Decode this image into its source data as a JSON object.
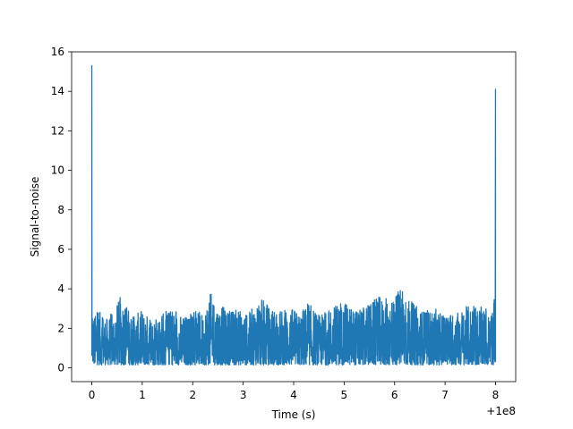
{
  "chart_data": {
    "type": "line",
    "title": "",
    "xlabel": "Time (s)",
    "ylabel": "Signal-to-noise",
    "x_offset_label": "+1e8",
    "xlim": [
      -0.4,
      8.4
    ],
    "ylim": [
      -0.7,
      16
    ],
    "x_ticks": [
      0,
      1,
      2,
      3,
      4,
      5,
      6,
      7,
      8
    ],
    "x_tick_labels": [
      "0",
      "1",
      "2",
      "3",
      "4",
      "5",
      "6",
      "7",
      "8"
    ],
    "y_ticks": [
      0,
      2,
      4,
      6,
      8,
      10,
      12,
      14,
      16
    ],
    "y_tick_labels": [
      "0",
      "2",
      "4",
      "6",
      "8",
      "10",
      "12",
      "14",
      "16"
    ],
    "grid": false,
    "series": [
      {
        "color": "#1f77b4",
        "x": [
          0.0,
          0.005,
          0.02,
          0.04,
          0.07,
          0.1,
          0.15,
          0.2,
          0.3,
          0.45,
          0.6,
          0.8,
          1.0,
          1.2,
          1.4,
          1.6,
          1.8,
          2.0,
          2.2,
          2.35,
          2.5,
          2.7,
          2.9,
          3.1,
          3.3,
          3.5,
          3.7,
          3.9,
          4.1,
          4.3,
          4.5,
          4.7,
          4.9,
          5.1,
          5.3,
          5.5,
          5.7,
          5.9,
          6.1,
          6.2,
          6.4,
          6.6,
          6.8,
          7.0,
          7.2,
          7.4,
          7.6,
          7.8,
          7.95,
          7.98,
          7.99,
          8.0
        ],
        "y": [
          15.3,
          5.5,
          3.3,
          2.9,
          2.7,
          3.2,
          2.8,
          2.9,
          2.5,
          3.0,
          3.8,
          2.6,
          2.9,
          2.5,
          2.8,
          3.0,
          2.6,
          2.9,
          2.8,
          3.8,
          3.3,
          2.9,
          3.0,
          2.7,
          3.6,
          3.2,
          2.9,
          3.1,
          2.8,
          3.3,
          2.7,
          3.0,
          3.3,
          3.2,
          2.9,
          3.3,
          3.6,
          3.5,
          4.1,
          3.7,
          3.2,
          2.9,
          3.0,
          2.7,
          2.8,
          3.1,
          3.2,
          3.0,
          2.9,
          3.6,
          14.2,
          14.1
        ]
      }
    ]
  }
}
